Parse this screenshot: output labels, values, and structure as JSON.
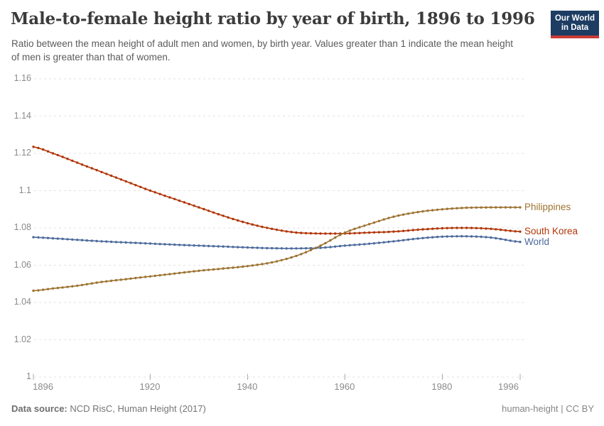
{
  "header": {
    "title": "Male-to-female height ratio by year of birth, 1896 to 1996",
    "subtitle": "Ratio between the mean height of adult men and women, by birth year. Values greater than 1 indicate the mean height of men is greater than that of women.",
    "logo_line1": "Our World",
    "logo_line2": "in Data"
  },
  "footer": {
    "source_label": "Data source:",
    "source_value": " NCD RisC, Human Height (2017)",
    "license": "human-height | CC BY"
  },
  "colors": {
    "philippines": "#9d7331",
    "south_korea": "#b13507",
    "world": "#4c6a9c",
    "gridline": "#e2e2e2",
    "tick": "#a9a9a9",
    "axis_text": "#8a8a8a",
    "logo_bg": "#1d3d63",
    "logo_stripe": "#c93c37"
  },
  "chart_data": {
    "type": "line",
    "title": "Male-to-female height ratio by year of birth, 1896 to 1996",
    "xlabel": "",
    "ylabel": "",
    "xlim": [
      1896,
      1996
    ],
    "ylim": [
      1,
      1.16
    ],
    "xticks": [
      1896,
      1920,
      1940,
      1960,
      1980,
      1996
    ],
    "yticks": [
      1,
      1.02,
      1.04,
      1.06,
      1.08,
      1.1,
      1.12,
      1.14,
      1.16
    ],
    "grid": "horizontal-dashed",
    "legend_position": "right-of-line-end",
    "markers": "point-per-year",
    "x": [
      1896,
      1900,
      1905,
      1910,
      1915,
      1920,
      1925,
      1930,
      1935,
      1940,
      1945,
      1950,
      1955,
      1960,
      1965,
      1970,
      1975,
      1980,
      1985,
      1990,
      1996
    ],
    "series": [
      {
        "name": "Philippines",
        "values": [
          1.0463,
          1.0475,
          1.049,
          1.051,
          1.0525,
          1.054,
          1.0555,
          1.057,
          1.0582,
          1.0595,
          1.0615,
          1.065,
          1.0705,
          1.0775,
          1.082,
          1.086,
          1.0885,
          1.09,
          1.0908,
          1.091,
          1.091
        ]
      },
      {
        "name": "South Korea",
        "values": [
          1.1235,
          1.12,
          1.115,
          1.11,
          1.105,
          1.1,
          1.0955,
          1.091,
          1.0865,
          1.0825,
          1.0795,
          1.0775,
          1.077,
          1.077,
          1.0775,
          1.078,
          1.079,
          1.0798,
          1.08,
          1.0795,
          1.078
        ]
      },
      {
        "name": "World",
        "values": [
          1.075,
          1.0744,
          1.0736,
          1.0728,
          1.0722,
          1.0716,
          1.071,
          1.0705,
          1.07,
          1.0695,
          1.0691,
          1.069,
          1.0693,
          1.0705,
          1.0715,
          1.0728,
          1.0743,
          1.0753,
          1.0755,
          1.0748,
          1.0725
        ]
      }
    ]
  }
}
